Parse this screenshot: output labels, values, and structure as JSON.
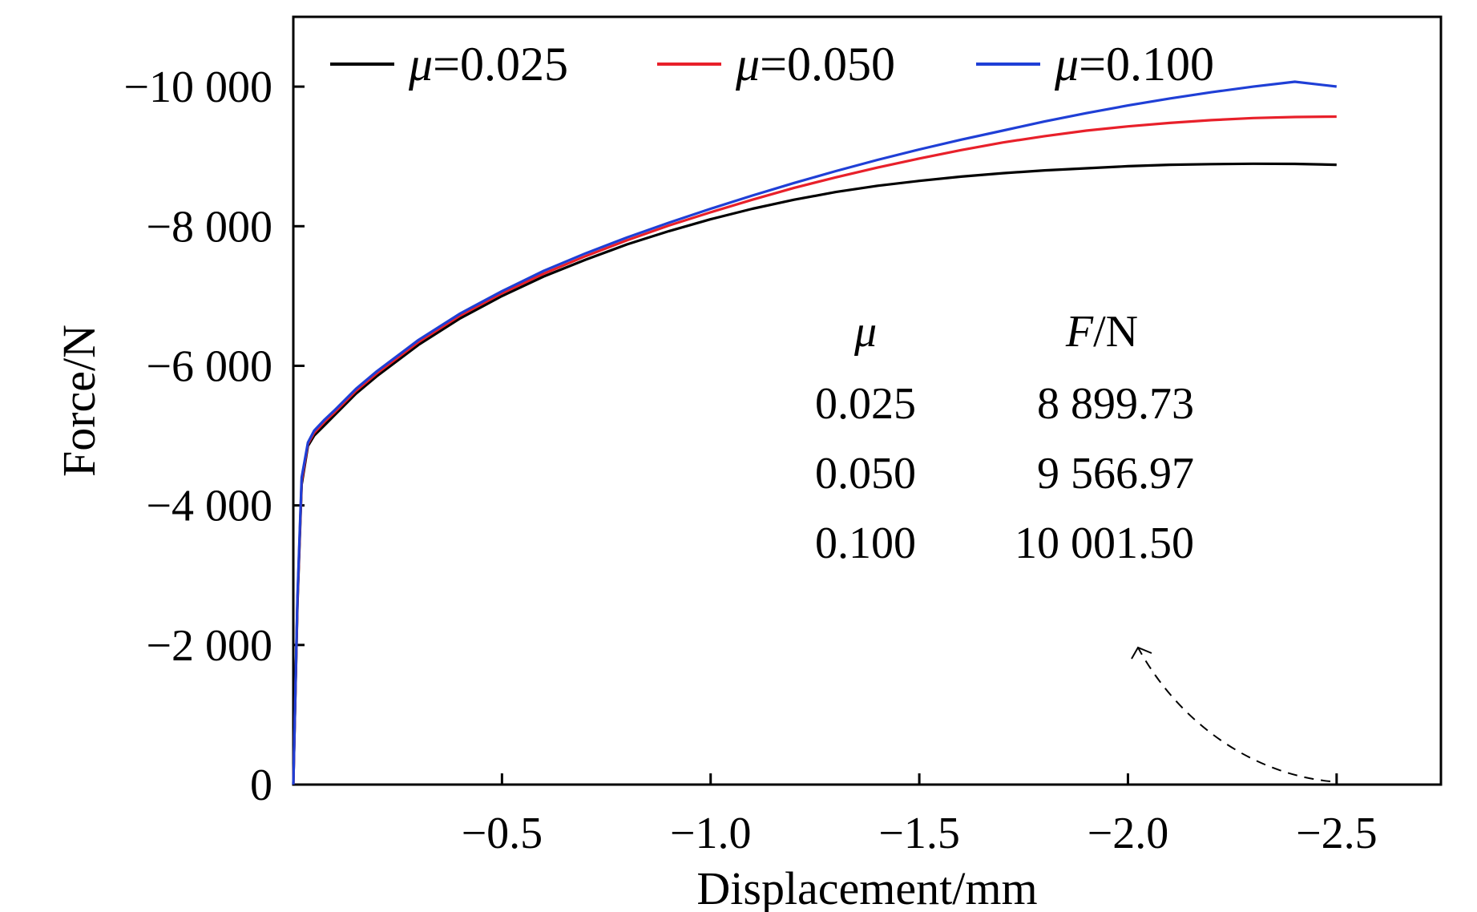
{
  "chart_data": {
    "type": "line",
    "xlabel": "Displacement/mm",
    "ylabel": "Force/N",
    "xlim": [
      0,
      -2.75
    ],
    "ylim": [
      0,
      -11000
    ],
    "x_ticks": [
      {
        "value": -0.5,
        "label": "−0.5"
      },
      {
        "value": -1.0,
        "label": "−1.0"
      },
      {
        "value": -1.5,
        "label": "−1.5"
      },
      {
        "value": -2.0,
        "label": "−2.0"
      },
      {
        "value": -2.5,
        "label": "−2.5"
      }
    ],
    "y_ticks": [
      {
        "value": 0,
        "label": "0"
      },
      {
        "value": -2000,
        "label": "−2 000"
      },
      {
        "value": -4000,
        "label": "−4 000"
      },
      {
        "value": -6000,
        "label": "−6 000"
      },
      {
        "value": -8000,
        "label": "−8 000"
      },
      {
        "value": -10000,
        "label": "−10 000"
      }
    ],
    "grid": false,
    "legend_position": "top",
    "series": [
      {
        "name": "μ=0.025",
        "legend_symbol": "μ",
        "legend_value": "=0.025",
        "color": "#000000",
        "x": [
          0,
          -0.01,
          -0.02,
          -0.035,
          -0.05,
          -0.075,
          -0.1,
          -0.15,
          -0.2,
          -0.3,
          -0.4,
          -0.5,
          -0.6,
          -0.7,
          -0.8,
          -0.9,
          -1.0,
          -1.1,
          -1.2,
          -1.3,
          -1.4,
          -1.5,
          -1.6,
          -1.7,
          -1.8,
          -1.9,
          -2.0,
          -2.1,
          -2.2,
          -2.3,
          -2.4,
          -2.5
        ],
        "y": [
          0,
          -2600,
          -4300,
          -4850,
          -5000,
          -5150,
          -5300,
          -5600,
          -5850,
          -6300,
          -6680,
          -7000,
          -7280,
          -7520,
          -7740,
          -7930,
          -8100,
          -8250,
          -8380,
          -8490,
          -8580,
          -8650,
          -8710,
          -8760,
          -8800,
          -8830,
          -8860,
          -8880,
          -8890,
          -8895,
          -8893,
          -8880
        ]
      },
      {
        "name": "μ=0.050",
        "legend_symbol": "μ",
        "legend_value": "=0.050",
        "color": "#e8202a",
        "x": [
          0,
          -0.01,
          -0.02,
          -0.035,
          -0.05,
          -0.075,
          -0.1,
          -0.15,
          -0.2,
          -0.3,
          -0.4,
          -0.5,
          -0.6,
          -0.7,
          -0.8,
          -0.9,
          -1.0,
          -1.1,
          -1.2,
          -1.3,
          -1.4,
          -1.5,
          -1.6,
          -1.7,
          -1.8,
          -1.9,
          -2.0,
          -2.1,
          -2.2,
          -2.3,
          -2.4,
          -2.5
        ],
        "y": [
          0,
          -2650,
          -4350,
          -4880,
          -5040,
          -5200,
          -5340,
          -5640,
          -5890,
          -6340,
          -6720,
          -7040,
          -7320,
          -7570,
          -7800,
          -8010,
          -8200,
          -8380,
          -8550,
          -8700,
          -8840,
          -8970,
          -9090,
          -9200,
          -9290,
          -9370,
          -9430,
          -9480,
          -9520,
          -9550,
          -9565,
          -9570
        ]
      },
      {
        "name": "μ=0.100",
        "legend_symbol": "μ",
        "legend_value": "=0.100",
        "color": "#1f3fd6",
        "x": [
          0,
          -0.01,
          -0.02,
          -0.035,
          -0.05,
          -0.075,
          -0.1,
          -0.15,
          -0.2,
          -0.3,
          -0.4,
          -0.5,
          -0.6,
          -0.7,
          -0.8,
          -0.9,
          -1.0,
          -1.1,
          -1.2,
          -1.3,
          -1.4,
          -1.5,
          -1.6,
          -1.7,
          -1.8,
          -1.9,
          -2.0,
          -2.1,
          -2.2,
          -2.3,
          -2.4,
          -2.5
        ],
        "y": [
          0,
          -2700,
          -4400,
          -4900,
          -5070,
          -5230,
          -5370,
          -5670,
          -5920,
          -6370,
          -6750,
          -7070,
          -7360,
          -7610,
          -7840,
          -8050,
          -8250,
          -8440,
          -8620,
          -8790,
          -8950,
          -9100,
          -9240,
          -9370,
          -9500,
          -9620,
          -9730,
          -9830,
          -9920,
          -10000,
          -10070,
          -10001.5
        ]
      }
    ],
    "annotation_table": {
      "header_symbol": "μ",
      "header_force_symbol": "F",
      "header_force_unit": "/N",
      "rows": [
        {
          "mu": "0.025",
          "force": "8 899.73"
        },
        {
          "mu": "0.050",
          "force": "9 566.97"
        },
        {
          "mu": "0.100",
          "force": "10 001.50"
        }
      ]
    },
    "annotation_arrow": {
      "from": {
        "x": -2.5,
        "y": 0
      },
      "to": {
        "x": -2.02,
        "y": -2000
      },
      "style": "dashed"
    }
  }
}
